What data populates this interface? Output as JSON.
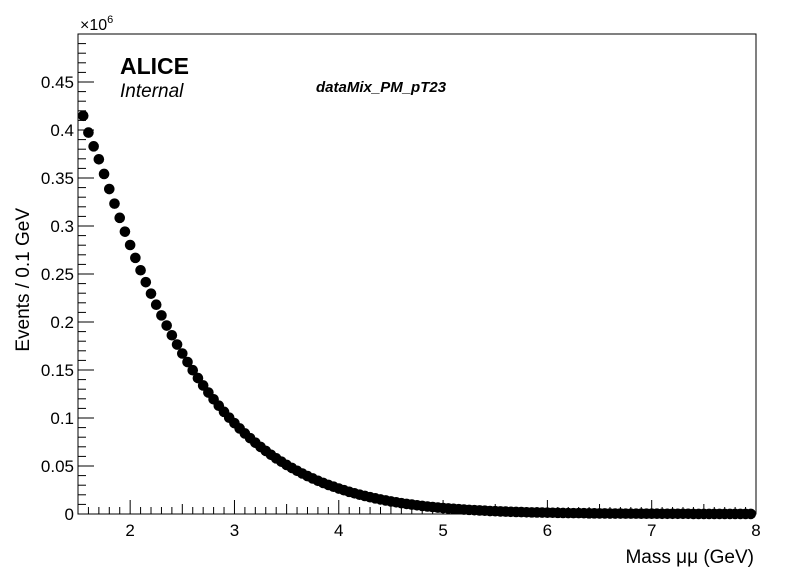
{
  "chart_data": {
    "type": "scatter",
    "xlabel": "Mass  μμ (GeV)",
    "ylabel": "Events / 0.1 GeV",
    "y_multiplier": "×10",
    "y_multiplier_exp": "6",
    "brand": "ALICE",
    "brand_subtitle": "Internal",
    "dataset_label": "dataMix_PM_pT23",
    "xlim": [
      1.5,
      8.0
    ],
    "ylim": [
      0,
      0.5
    ],
    "x_ticks": [
      2,
      3,
      4,
      5,
      6,
      7,
      8
    ],
    "x_tick_labels": [
      "2",
      "3",
      "4",
      "5",
      "6",
      "7",
      "8"
    ],
    "y_ticks": [
      0,
      0.05,
      0.1,
      0.15,
      0.2,
      0.25,
      0.3,
      0.35,
      0.4,
      0.45
    ],
    "y_tick_labels": [
      "0",
      "0.05",
      "0.1",
      "0.15",
      "0.2",
      "0.25",
      "0.3",
      "0.35",
      "0.4",
      "0.45"
    ],
    "grid": false,
    "marker_color": "#000000",
    "x": [
      1.55,
      1.6,
      1.65,
      1.7,
      1.75,
      1.8,
      1.85,
      1.9,
      1.95,
      2.0,
      2.05,
      2.1,
      2.15,
      2.2,
      2.25,
      2.3,
      2.35,
      2.4,
      2.45,
      2.5,
      2.55,
      2.6,
      2.65,
      2.7,
      2.75,
      2.8,
      2.85,
      2.9,
      2.95,
      3.0,
      3.05,
      3.1,
      3.15,
      3.2,
      3.25,
      3.3,
      3.35,
      3.4,
      3.45,
      3.5,
      3.55,
      3.6,
      3.65,
      3.7,
      3.75,
      3.8,
      3.85,
      3.9,
      3.95,
      4.0,
      4.05,
      4.1,
      4.15,
      4.2,
      4.25,
      4.3,
      4.35,
      4.4,
      4.45,
      4.5,
      4.55,
      4.6,
      4.65,
      4.7,
      4.75,
      4.8,
      4.85,
      4.9,
      4.95,
      5.0,
      5.05,
      5.1,
      5.15,
      5.2,
      5.25,
      5.3,
      5.35,
      5.4,
      5.45,
      5.5,
      5.55,
      5.6,
      5.65,
      5.7,
      5.75,
      5.8,
      5.85,
      5.9,
      5.95,
      6.0,
      6.05,
      6.1,
      6.15,
      6.2,
      6.25,
      6.3,
      6.35,
      6.4,
      6.45,
      6.5,
      6.55,
      6.6,
      6.65,
      6.7,
      6.75,
      6.8,
      6.85,
      6.9,
      6.95,
      7.0,
      7.05,
      7.1,
      7.15,
      7.2,
      7.25,
      7.3,
      7.35,
      7.4,
      7.45,
      7.5,
      7.55,
      7.6,
      7.65,
      7.7,
      7.75,
      7.8,
      7.85,
      7.9,
      7.95
    ],
    "y": [
      0.4148,
      0.3973,
      0.383,
      0.3695,
      0.3542,
      0.3385,
      0.3233,
      0.3085,
      0.2941,
      0.2802,
      0.2668,
      0.2539,
      0.2415,
      0.2295,
      0.218,
      0.2069,
      0.1963,
      0.1862,
      0.1765,
      0.1672,
      0.1583,
      0.1498,
      0.1416,
      0.1339,
      0.1265,
      0.1195,
      0.1128,
      0.1064,
      0.1003,
      0.0946,
      0.0891,
      0.0839,
      0.079,
      0.0743,
      0.0699,
      0.0657,
      0.0617,
      0.058,
      0.0545,
      0.0511,
      0.048,
      0.045,
      0.0422,
      0.0395,
      0.037,
      0.0346,
      0.0324,
      0.0303,
      0.0284,
      0.0265,
      0.0248,
      0.0231,
      0.0216,
      0.0201,
      0.0188,
      0.0175,
      0.0163,
      0.0152,
      0.0141,
      0.0131,
      0.0122,
      0.0113,
      0.0105,
      0.0098,
      0.0091,
      0.0084,
      0.0078,
      0.0073,
      0.0067,
      0.0062,
      0.0058,
      0.0054,
      0.005,
      0.0046,
      0.0043,
      0.004,
      0.0037,
      0.0034,
      0.0031,
      0.0029,
      0.0027,
      0.0025,
      0.0023,
      0.0021,
      0.002,
      0.0018,
      0.0017,
      0.0016,
      0.0015,
      0.0014,
      0.0013,
      0.0012,
      0.0011,
      0.001,
      0.0009,
      0.0009,
      0.0008,
      0.0007,
      0.0007,
      0.0006,
      0.0006,
      0.0005,
      0.0005,
      0.0005,
      0.0004,
      0.0004,
      0.0004,
      0.0003,
      0.0003,
      0.0003,
      0.0003,
      0.0002,
      0.0002,
      0.0002,
      0.0002,
      0.0002,
      0.0002,
      0.0001,
      0.0001,
      0.0001,
      0.0001,
      0.0001,
      0.0001,
      0.0001,
      0.0001,
      0.0001,
      0.0001,
      0.0001,
      0.0001
    ]
  }
}
